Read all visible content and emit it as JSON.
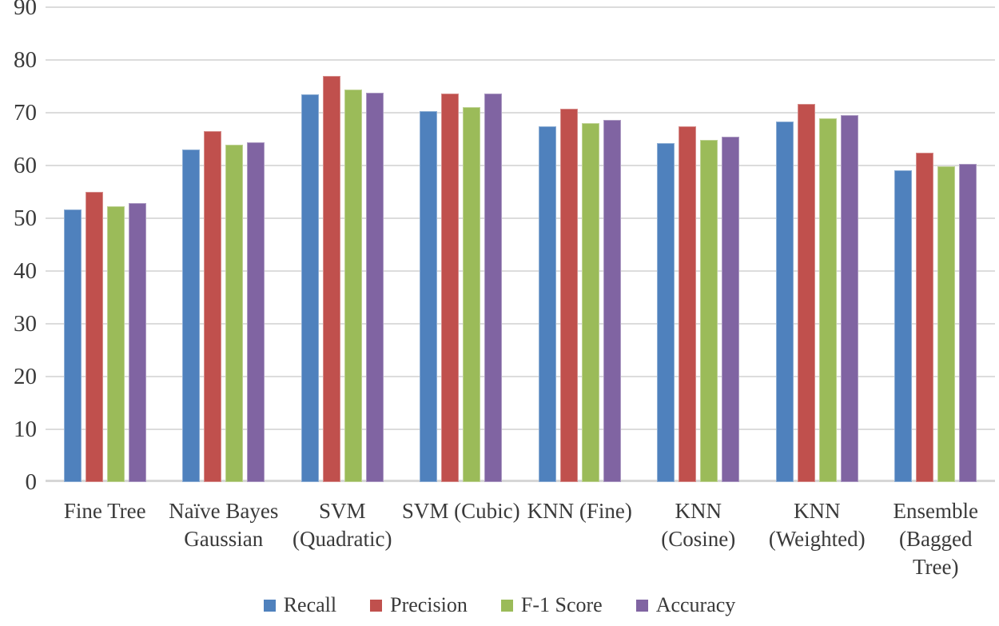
{
  "chart_data": {
    "type": "bar",
    "title": "",
    "xlabel": "",
    "ylabel": "",
    "ylim": [
      0,
      90
    ],
    "yticks": [
      0,
      10,
      20,
      30,
      40,
      50,
      60,
      70,
      80,
      90
    ],
    "grid": "horizontal",
    "legend_position": "bottom",
    "background_color": "#ffffff",
    "gridline_color": "#dcdcdc",
    "axis_line_color": "#d6d6d6",
    "text_color": "#3a3a3a",
    "categories": [
      "Fine Tree",
      "Naïve Bayes Gaussian",
      "SVM (Quadratic)",
      "SVM (Cubic)",
      "KNN (Fine)",
      "KNN (Cosine)",
      "KNN (Weighted)",
      "Ensemble (Bagged Tree)"
    ],
    "category_lines": [
      [
        "Fine Tree"
      ],
      [
        "Naïve Bayes",
        "Gaussian"
      ],
      [
        "SVM",
        "(Quadratic)"
      ],
      [
        "SVM (Cubic)"
      ],
      [
        "KNN (Fine)"
      ],
      [
        "KNN",
        "(Cosine)"
      ],
      [
        "KNN",
        "(Weighted)"
      ],
      [
        "Ensemble",
        "(Bagged",
        "Tree)"
      ]
    ],
    "series": [
      {
        "name": "Recall",
        "color": "#4F81BD",
        "values": [
          51.6,
          63.1,
          73.5,
          70.3,
          67.4,
          64.3,
          68.3,
          59.1
        ]
      },
      {
        "name": "Precision",
        "color": "#C0504D",
        "values": [
          55.0,
          66.5,
          76.9,
          73.7,
          70.8,
          67.5,
          71.7,
          62.4
        ]
      },
      {
        "name": "F-1 Score",
        "color": "#9BBB59",
        "values": [
          52.3,
          63.9,
          74.4,
          71.1,
          68.1,
          64.9,
          69.0,
          59.9
        ]
      },
      {
        "name": "Accuracy",
        "color": "#8064A2",
        "values": [
          52.9,
          64.4,
          73.8,
          73.6,
          68.6,
          65.5,
          69.6,
          60.3
        ]
      }
    ]
  }
}
